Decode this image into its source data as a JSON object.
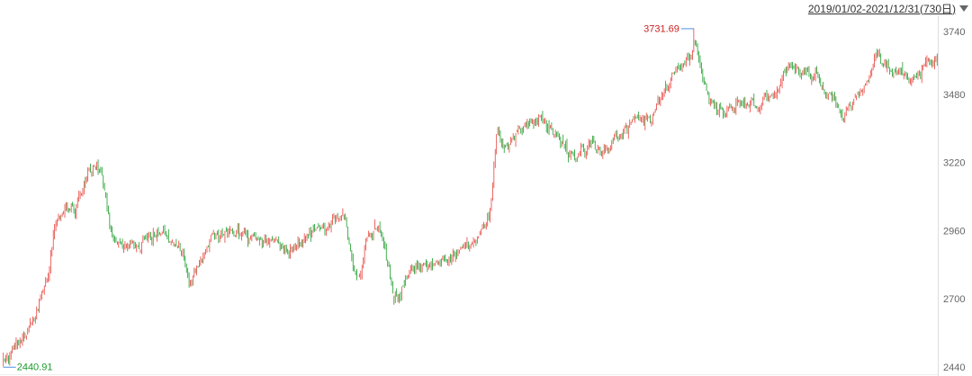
{
  "header": {
    "date_range": "2019/01/02-2021/12/31(730日)"
  },
  "colors": {
    "up": "#e8413b",
    "down": "#1a9c2a",
    "grid": "#e6e6e6",
    "axis_text": "#666666",
    "max_label": "#cc2222",
    "min_label": "#1a9c2a",
    "leader": "#4a90e2"
  },
  "chart_data": {
    "type": "candlestick",
    "title": "",
    "xlabel": "",
    "ylabel": "",
    "x_range": [
      "2019/01/02",
      "2021/12/31"
    ],
    "trading_days": 730,
    "ylim": [
      2440,
      3740
    ],
    "yticks": [
      3740,
      3480,
      3220,
      2960,
      2700,
      2440
    ],
    "ytick_labels": [
      "3740",
      "3480",
      "3220",
      "2960",
      "2700",
      "2440"
    ],
    "grid": false,
    "max": {
      "value": 3731.69,
      "label": "3731.69"
    },
    "min": {
      "value": 2440.91,
      "label": "2440.91"
    },
    "close_path": [
      [
        0,
        2460
      ],
      [
        8,
        2510
      ],
      [
        20,
        2580
      ],
      [
        28,
        2700
      ],
      [
        35,
        2800
      ],
      [
        40,
        3000
      ],
      [
        48,
        3060
      ],
      [
        55,
        3040
      ],
      [
        65,
        3180
      ],
      [
        72,
        3210
      ],
      [
        78,
        3130
      ],
      [
        85,
        2920
      ],
      [
        95,
        2890
      ],
      [
        108,
        2910
      ],
      [
        120,
        2960
      ],
      [
        130,
        2930
      ],
      [
        140,
        2890
      ],
      [
        145,
        2750
      ],
      [
        155,
        2870
      ],
      [
        165,
        2950
      ],
      [
        180,
        2960
      ],
      [
        195,
        2930
      ],
      [
        210,
        2910
      ],
      [
        225,
        2880
      ],
      [
        240,
        2960
      ],
      [
        255,
        2990
      ],
      [
        265,
        3020
      ],
      [
        275,
        2750
      ],
      [
        282,
        2900
      ],
      [
        292,
        3000
      ],
      [
        300,
        2820
      ],
      [
        305,
        2680
      ],
      [
        315,
        2790
      ],
      [
        330,
        2840
      ],
      [
        345,
        2850
      ],
      [
        358,
        2880
      ],
      [
        370,
        2950
      ],
      [
        380,
        3020
      ],
      [
        385,
        3400
      ],
      [
        390,
        3250
      ],
      [
        398,
        3320
      ],
      [
        410,
        3380
      ],
      [
        420,
        3400
      ],
      [
        432,
        3300
      ],
      [
        445,
        3240
      ],
      [
        458,
        3290
      ],
      [
        468,
        3250
      ],
      [
        480,
        3320
      ],
      [
        492,
        3380
      ],
      [
        505,
        3370
      ],
      [
        515,
        3500
      ],
      [
        525,
        3580
      ],
      [
        535,
        3600
      ],
      [
        540,
        3700
      ],
      [
        545,
        3520
      ],
      [
        552,
        3450
      ],
      [
        562,
        3400
      ],
      [
        575,
        3450
      ],
      [
        590,
        3430
      ],
      [
        602,
        3480
      ],
      [
        610,
        3580
      ],
      [
        620,
        3570
      ],
      [
        632,
        3560
      ],
      [
        640,
        3500
      ],
      [
        648,
        3480
      ],
      [
        655,
        3380
      ],
      [
        663,
        3470
      ],
      [
        672,
        3520
      ],
      [
        680,
        3630
      ],
      [
        688,
        3600
      ],
      [
        698,
        3560
      ],
      [
        708,
        3520
      ],
      [
        718,
        3600
      ],
      [
        725,
        3590
      ],
      [
        729,
        3600
      ]
    ]
  }
}
